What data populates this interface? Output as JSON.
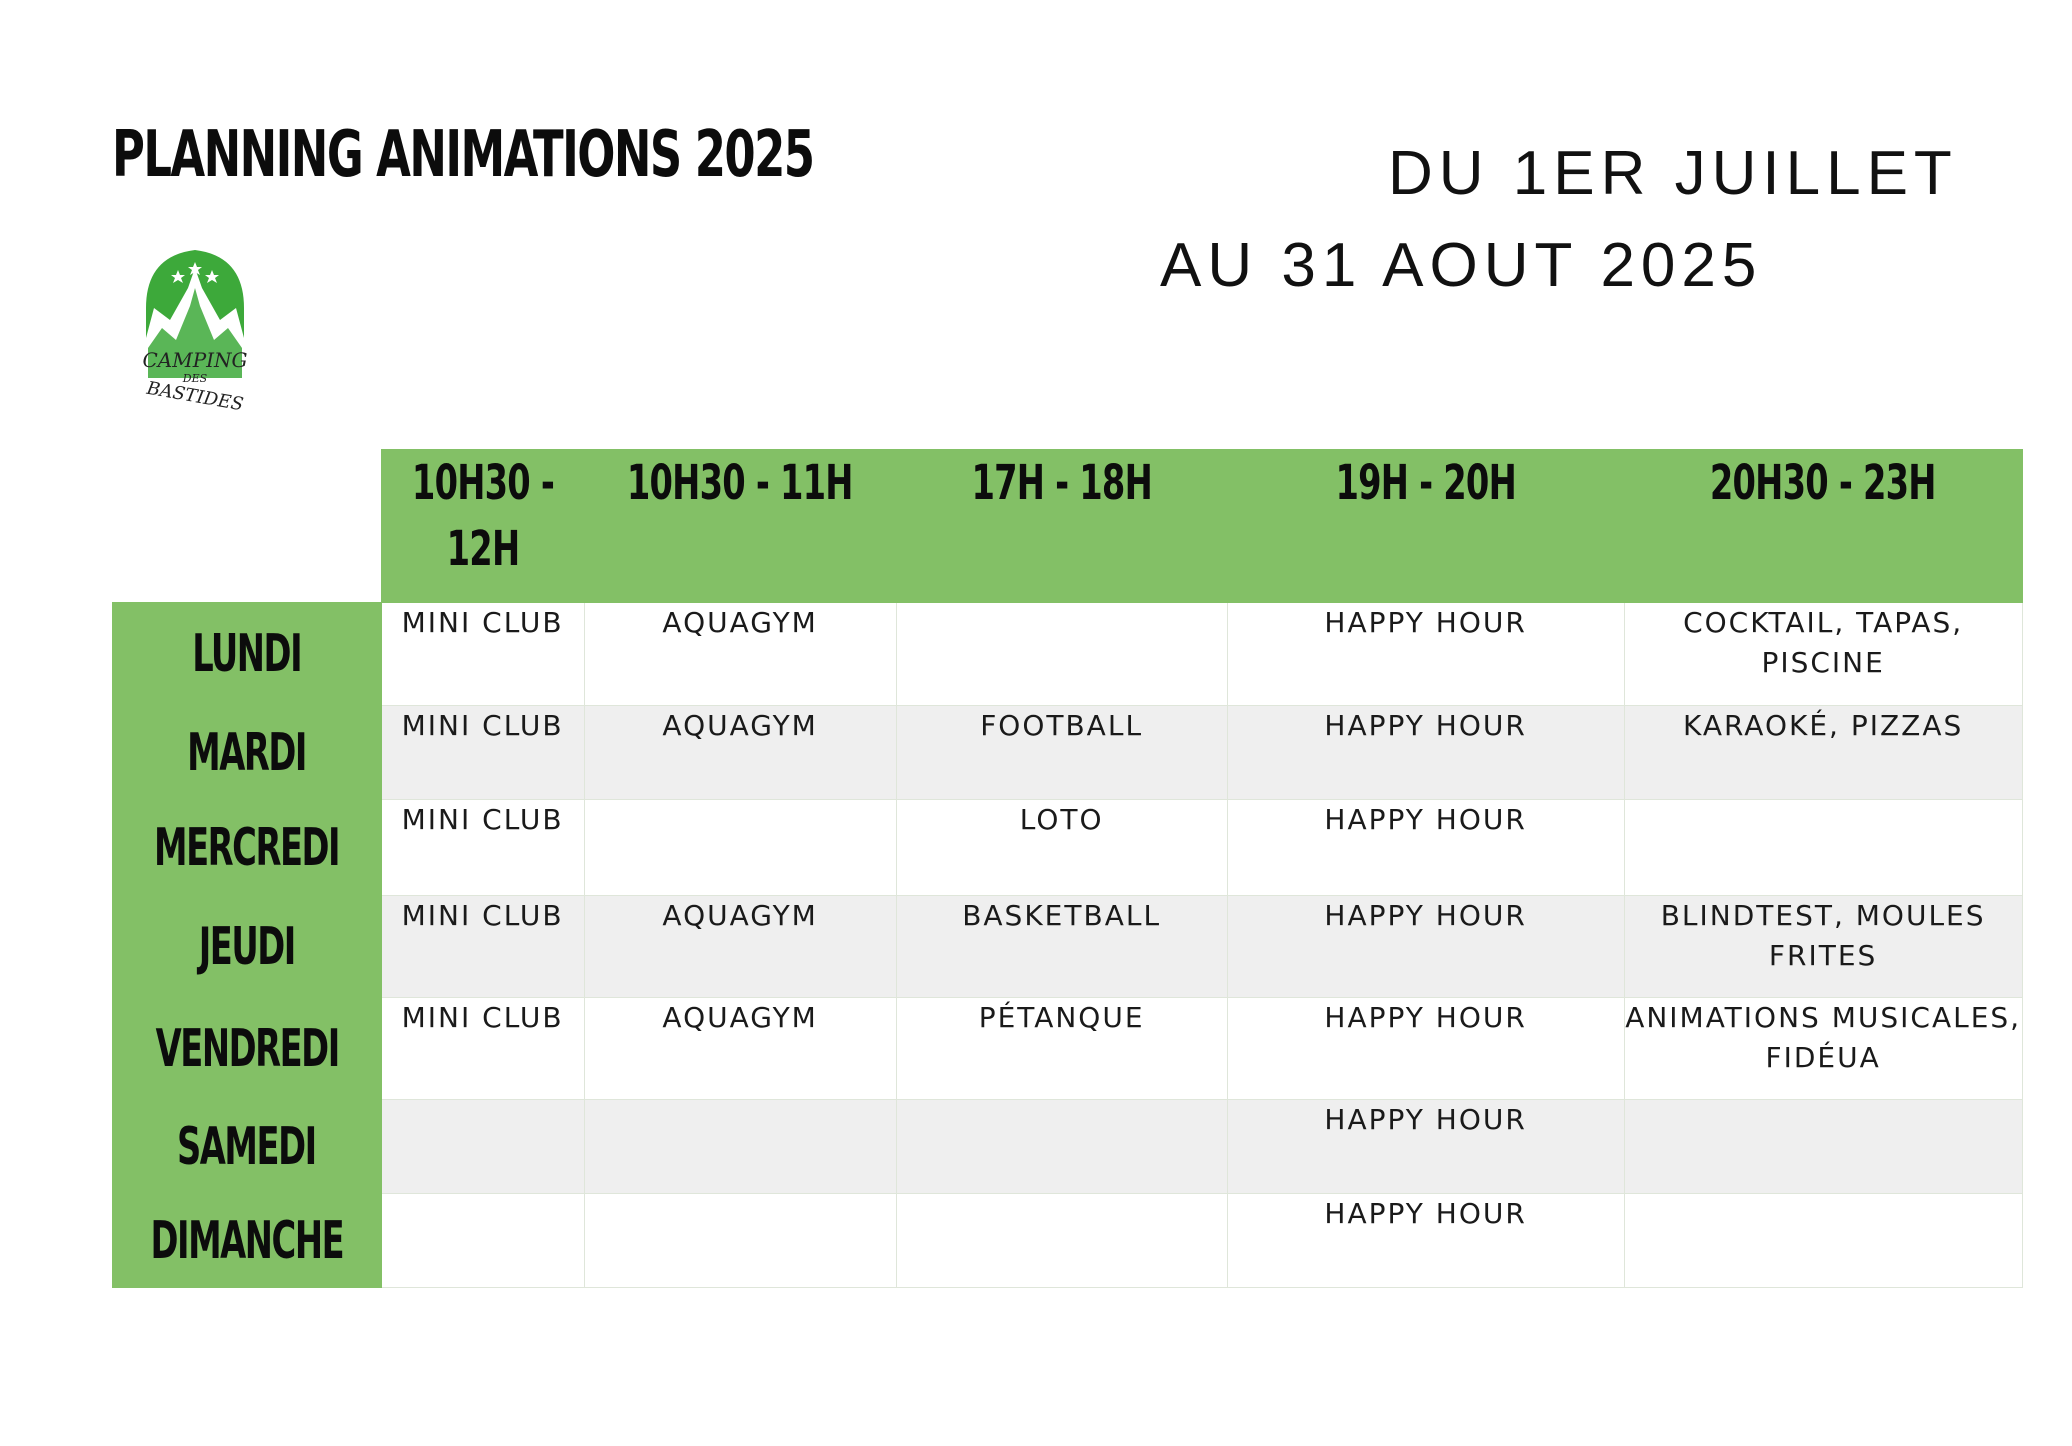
{
  "header": {
    "title": "PLANNING ANIMATIONS 2025",
    "date_line_1": "DU 1ER JUILLET",
    "date_line_2": "AU 31 AOUT 2025"
  },
  "logo": {
    "line_1": "CAMPING",
    "line_2": "DES",
    "line_3": "BASTIDES",
    "color": "#3da93a"
  },
  "colors": {
    "header_green": "#83c066",
    "row_shade": "#efefef"
  },
  "schedule": {
    "time_slots": [
      "10H30 - 12H",
      "10H30 - 11H",
      "17H - 18H",
      "19H - 20H",
      "20H30 - 23H"
    ],
    "rows": [
      {
        "day": "LUNDI",
        "cells": [
          "MINI CLUB",
          "AQUAGYM",
          "",
          "HAPPY HOUR",
          "COCKTAIL, TAPAS, PISCINE"
        ]
      },
      {
        "day": "MARDI",
        "cells": [
          "MINI CLUB",
          "AQUAGYM",
          "FOOTBALL",
          "HAPPY HOUR",
          "KARAOKÉ, PIZZAS"
        ]
      },
      {
        "day": "MERCREDI",
        "cells": [
          "MINI CLUB",
          "",
          "LOTO",
          "HAPPY HOUR",
          ""
        ]
      },
      {
        "day": "JEUDI",
        "cells": [
          "MINI CLUB",
          "AQUAGYM",
          "BASKETBALL",
          "HAPPY HOUR",
          "BLINDTEST, MOULES FRITES"
        ]
      },
      {
        "day": "VENDREDI",
        "cells": [
          "MINI CLUB",
          "AQUAGYM",
          "PÉTANQUE",
          "HAPPY HOUR",
          "ANIMATIONS MUSICALES, FIDÉUA"
        ]
      },
      {
        "day": "SAMEDI",
        "cells": [
          "",
          "",
          "",
          "HAPPY HOUR",
          ""
        ]
      },
      {
        "day": "DIMANCHE",
        "cells": [
          "",
          "",
          "",
          "HAPPY HOUR",
          ""
        ]
      }
    ]
  }
}
